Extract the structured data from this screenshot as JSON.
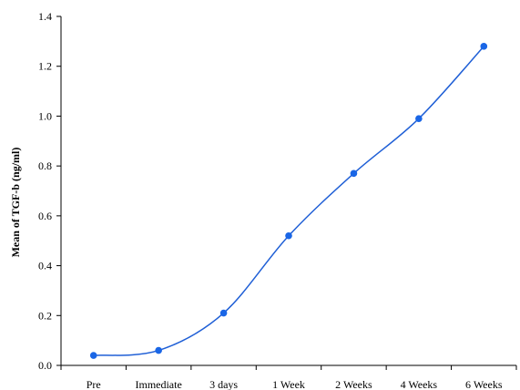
{
  "chart_data": {
    "type": "line",
    "title": "",
    "xlabel": "",
    "ylabel": "Mean of TGF-b (ng/ml)",
    "categories": [
      "Pre",
      "Immediate",
      "3 days",
      "1 Week",
      "2 Weeks",
      "4 Weeks",
      "6 Weeks"
    ],
    "series": [
      {
        "values": [
          0.04,
          0.06,
          0.21,
          0.52,
          0.77,
          0.99,
          1.28
        ]
      }
    ],
    "ylim": [
      0,
      1.4
    ],
    "yticks": [
      "0.0",
      "0.2",
      "0.4",
      "0.6",
      "0.8",
      "1.0",
      "1.2",
      "1.4"
    ],
    "grid": false,
    "smooth": true,
    "colors": {
      "line": "#1f5fd6",
      "marker": "#1a66e6",
      "axis": "#000000"
    }
  }
}
